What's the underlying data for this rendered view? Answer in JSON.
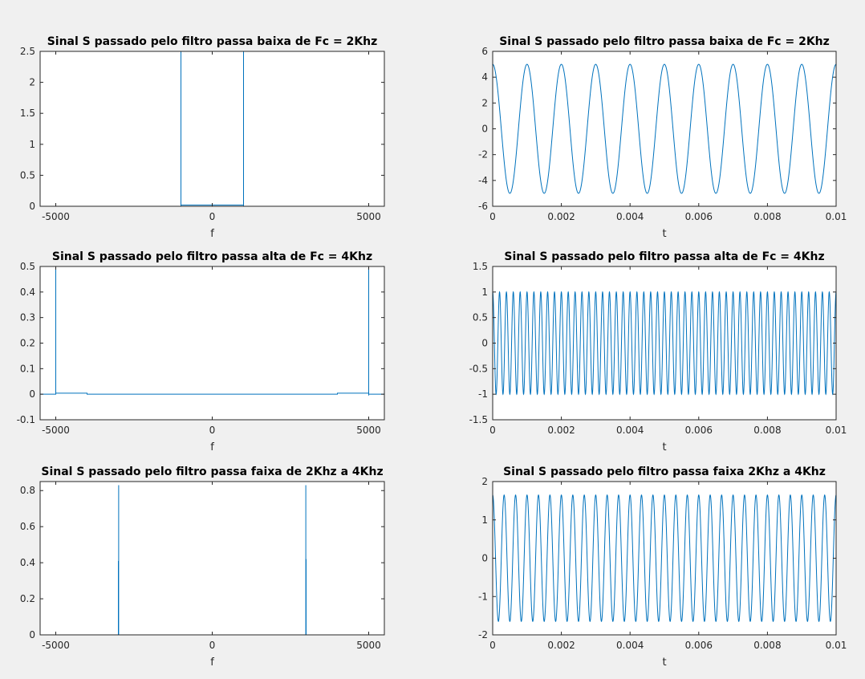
{
  "figure": {
    "background": "#f0f0f0",
    "axes_color": "#262626",
    "line_color": "#0072bd"
  },
  "chart_data": [
    {
      "type": "line",
      "title": "Sinal S passado pelo filtro passa baixa de Fc = 2Khz",
      "xlabel": "f",
      "ylabel": "",
      "xlim": [
        -5500,
        5500
      ],
      "ylim": [
        0,
        2.5
      ],
      "xticks": [
        -5000,
        0,
        5000
      ],
      "xtick_labels": [
        "-5000",
        "0",
        "5000"
      ],
      "yticks": [
        0,
        0.5,
        1,
        1.5,
        2,
        2.5
      ],
      "ytick_labels": [
        "0",
        "0.5",
        "1",
        "1.5",
        "2",
        "2.5"
      ],
      "grid": false,
      "series": [
        {
          "values": [
            [
              -5500,
              0
            ],
            [
              -1000,
              0
            ],
            [
              -1000,
              2.5
            ],
            [
              -1000,
              0.02
            ],
            [
              1000,
              0.02
            ],
            [
              1000,
              2.5
            ],
            [
              1000,
              0
            ],
            [
              5500,
              0
            ]
          ]
        }
      ]
    },
    {
      "type": "line",
      "title": "Sinal S passado pelo filtro passa baixa de Fc = 2Khz",
      "xlabel": "t",
      "ylabel": "",
      "xlim": [
        0,
        0.01
      ],
      "ylim": [
        -6,
        6
      ],
      "xticks": [
        0,
        0.002,
        0.004,
        0.006,
        0.008,
        0.01
      ],
      "xtick_labels": [
        "0",
        "0.002",
        "0.004",
        "0.006",
        "0.008",
        "0.01"
      ],
      "yticks": [
        -6,
        -4,
        -2,
        0,
        2,
        4,
        6
      ],
      "ytick_labels": [
        "-6",
        "-4",
        "-2",
        "0",
        "2",
        "4",
        "6"
      ],
      "grid": false,
      "series": [
        {
          "signal": {
            "form": "cosine",
            "amplitude": 5,
            "frequency_hz": 1000
          }
        }
      ]
    },
    {
      "type": "line",
      "title": "Sinal S passado pelo filtro passa alta de Fc = 4Khz",
      "xlabel": "f",
      "ylabel": "",
      "xlim": [
        -5500,
        5500
      ],
      "ylim": [
        -0.1,
        0.5
      ],
      "xticks": [
        -5000,
        0,
        5000
      ],
      "xtick_labels": [
        "-5000",
        "0",
        "5000"
      ],
      "yticks": [
        -0.1,
        0,
        0.1,
        0.2,
        0.3,
        0.4,
        0.5
      ],
      "ytick_labels": [
        "-0.1",
        "0",
        "0.1",
        "0.2",
        "0.3",
        "0.4",
        "0.5"
      ],
      "grid": false,
      "series": [
        {
          "values": [
            [
              -5500,
              0
            ],
            [
              -5000,
              0
            ],
            [
              -5000,
              0.5
            ],
            [
              -5000,
              0.004
            ],
            [
              -4000,
              0.004
            ],
            [
              -4000,
              0
            ],
            [
              4000,
              0
            ],
            [
              4000,
              0.004
            ],
            [
              5000,
              0.004
            ],
            [
              5000,
              0.5
            ],
            [
              5000,
              -0.005
            ],
            [
              5000,
              0
            ],
            [
              5500,
              0
            ]
          ]
        }
      ]
    },
    {
      "type": "line",
      "title": "Sinal S passado pelo filtro passa alta de Fc = 4Khz",
      "xlabel": "t",
      "ylabel": "",
      "xlim": [
        0,
        0.01
      ],
      "ylim": [
        -1.5,
        1.5
      ],
      "xticks": [
        0,
        0.002,
        0.004,
        0.006,
        0.008,
        0.01
      ],
      "xtick_labels": [
        "0",
        "0.002",
        "0.004",
        "0.006",
        "0.008",
        "0.01"
      ],
      "yticks": [
        -1.5,
        -1,
        -0.5,
        0,
        0.5,
        1,
        1.5
      ],
      "ytick_labels": [
        "-1.5",
        "-1",
        "-0.5",
        "0",
        "0.5",
        "1",
        "1.5"
      ],
      "grid": false,
      "series": [
        {
          "signal": {
            "form": "cosine",
            "amplitude": 1,
            "frequency_hz": 5000
          }
        }
      ]
    },
    {
      "type": "line",
      "title": "Sinal S passado pelo filtro passa faixa de 2Khz a 4Khz",
      "xlabel": "f",
      "ylabel": "",
      "xlim": [
        -5500,
        5500
      ],
      "ylim": [
        0,
        0.85
      ],
      "xticks": [
        -5000,
        0,
        5000
      ],
      "xtick_labels": [
        "-5000",
        "0",
        "5000"
      ],
      "yticks": [
        0,
        0.2,
        0.4,
        0.6,
        0.8
      ],
      "ytick_labels": [
        "0",
        "0.2",
        "0.4",
        "0.6",
        "0.8"
      ],
      "grid": false,
      "series": [
        {
          "values": [
            [
              -5500,
              0
            ],
            [
              -3000,
              0
            ],
            [
              -3000,
              0.41
            ],
            [
              -3000,
              0
            ],
            [
              -2990,
              0
            ],
            [
              -2990,
              0.83
            ],
            [
              -2990,
              0
            ],
            [
              2990,
              0
            ],
            [
              2990,
              0.83
            ],
            [
              2990,
              0
            ],
            [
              3000,
              0
            ],
            [
              3000,
              0.42
            ],
            [
              3000,
              0
            ],
            [
              5500,
              0
            ]
          ]
        }
      ]
    },
    {
      "type": "line",
      "title": "Sinal S passado pelo filtro passa faixa 2Khz a 4Khz",
      "xlabel": "t",
      "ylabel": "",
      "xlim": [
        0,
        0.01
      ],
      "ylim": [
        -2,
        2
      ],
      "xticks": [
        0,
        0.002,
        0.004,
        0.006,
        0.008,
        0.01
      ],
      "xtick_labels": [
        "0",
        "0.002",
        "0.004",
        "0.006",
        "0.008",
        "0.01"
      ],
      "yticks": [
        -2,
        -1,
        0,
        1,
        2
      ],
      "ytick_labels": [
        "-2",
        "-1",
        "0",
        "1",
        "2"
      ],
      "grid": false,
      "series": [
        {
          "signal": {
            "form": "cosine",
            "amplitude": 1.65,
            "frequency_hz": 3000
          }
        }
      ]
    }
  ]
}
